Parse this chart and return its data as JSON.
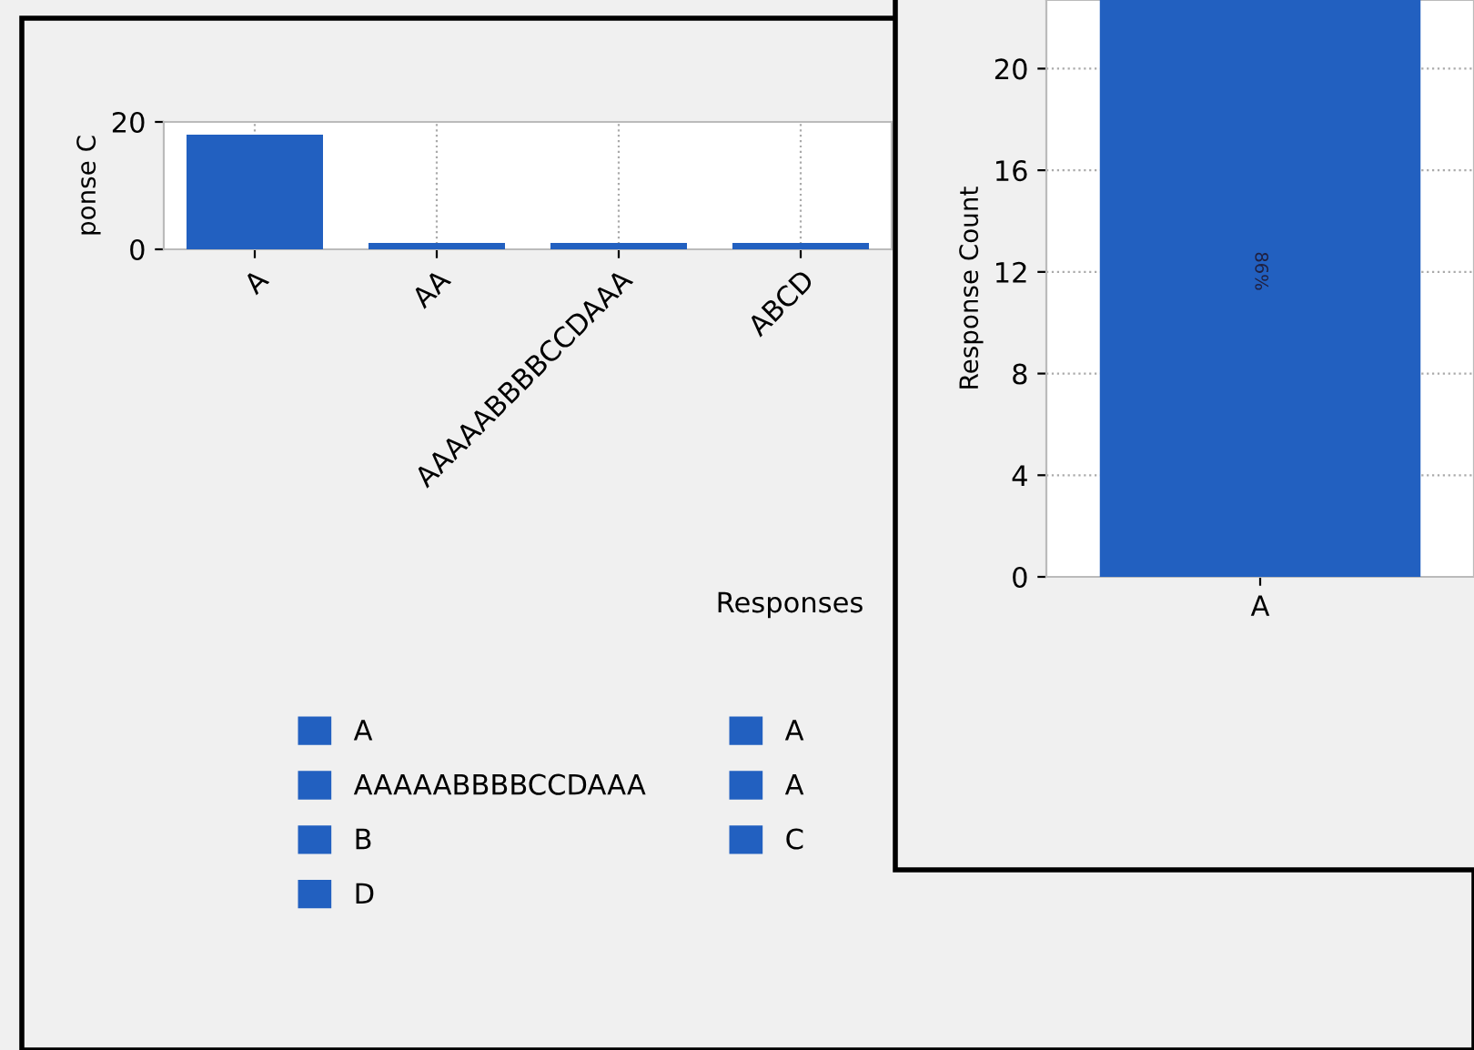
{
  "chart_data": [
    {
      "type": "bar",
      "xlabel": "Responses",
      "ylabel": "ponse C",
      "categories": [
        "A",
        "AA",
        "AAAAABBBBCCDAAA",
        "ABCD"
      ],
      "series": [
        {
          "name": "A",
          "color": "#2260c0",
          "values": [
            18,
            null,
            null,
            null
          ]
        },
        {
          "name": "AAAAABBBBCCDAAA",
          "color": "#2260c0",
          "values": [
            null,
            null,
            1,
            null
          ]
        },
        {
          "name": "B",
          "color": "#2260c0",
          "values": [
            null,
            null,
            null,
            null
          ]
        },
        {
          "name": "D",
          "color": "#2260c0",
          "values": [
            null,
            null,
            null,
            null
          ]
        },
        {
          "name": "A",
          "color": "#2260c0",
          "values": [
            null,
            1,
            null,
            null
          ]
        },
        {
          "name": "A",
          "color": "#2260c0",
          "values": [
            null,
            null,
            null,
            1
          ]
        },
        {
          "name": "C",
          "color": "#2260c0",
          "values": [
            null,
            null,
            null,
            null
          ]
        }
      ],
      "ylim": [
        0,
        20
      ],
      "yticks": [
        0,
        20
      ],
      "grid": "x",
      "legend": "bottom"
    },
    {
      "type": "bar",
      "ylabel": "Response Count",
      "categories": [
        "A"
      ],
      "series": [
        {
          "color": "#2260c0",
          "values": [
            22.7
          ]
        }
      ],
      "annotations": [
        "86%"
      ],
      "ylim": [
        0,
        22.7
      ],
      "yticks": [
        0,
        4,
        8,
        12,
        16,
        20
      ],
      "grid": "y"
    }
  ]
}
